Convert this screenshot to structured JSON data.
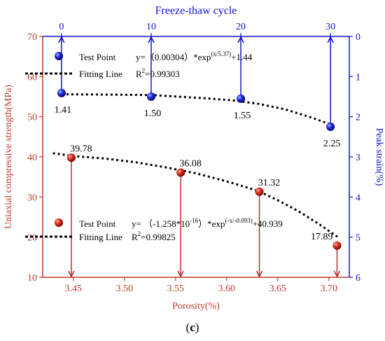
{
  "colors": {
    "bottom_axis": "#c0392b",
    "bottom_series": "#b22222",
    "top_axis": "#1010d0",
    "top_series": "#0000cc",
    "fit_line": "#000000",
    "text": "#000000"
  },
  "chart_data": [
    {
      "type": "scatter",
      "title": "",
      "xlabel": "Porosity(%)",
      "ylabel": "Uniaxial compressive strength(MPa)",
      "xlim": [
        3.42,
        3.72
      ],
      "ylim": [
        10,
        70
      ],
      "xticks": [
        "3.45",
        "3.50",
        "3.55",
        "3.60",
        "3.65",
        "3.70"
      ],
      "yticks": [
        "10",
        "20",
        "30",
        "40",
        "50",
        "60",
        "70"
      ],
      "series": [
        {
          "name": "Test Point",
          "x": [
            3.448,
            3.555,
            3.632,
            3.708
          ],
          "y": [
            39.78,
            36.08,
            31.32,
            17.89
          ],
          "labels": [
            "39.78",
            "36.08",
            "31.32",
            "17.89"
          ]
        },
        {
          "name": "Fitting Line",
          "style": "dotted",
          "x": [
            3.43,
            3.45,
            3.48,
            3.51,
            3.54,
            3.57,
            3.6,
            3.63,
            3.65,
            3.67,
            3.69,
            3.71
          ],
          "y": [
            40.9,
            40.2,
            39.6,
            38.7,
            37.4,
            35.9,
            33.9,
            31.6,
            29.2,
            26.5,
            23.3,
            19.8
          ]
        }
      ],
      "legend": {
        "placement": "lower-left",
        "test_point": "Test Point",
        "fitting_line": "Fitting Line",
        "equation_prefix": "y= （-1.258*10",
        "equation_exp1": "-16",
        "equation_mid": "）*exp",
        "equation_exp2": "(-x/-0.093)",
        "equation_suffix": "+40.939",
        "r2_prefix": "R",
        "r2_sup": "2",
        "r2_value": "=0.99825"
      }
    },
    {
      "type": "scatter",
      "title": "",
      "xlabel": "Freeze-thaw cycle",
      "ylabel": "Peak strain(%)",
      "xlim": [
        -2.1,
        32.1
      ],
      "ylim": [
        6,
        0
      ],
      "xticks": [
        "0",
        "10",
        "20",
        "30"
      ],
      "yticks": [
        "0",
        "1",
        "2",
        "3",
        "4",
        "5",
        "6"
      ],
      "series": [
        {
          "name": "Test Point",
          "x": [
            0,
            10,
            20,
            30
          ],
          "y": [
            1.41,
            1.5,
            1.55,
            2.25
          ],
          "labels": [
            "1.41",
            "1.50",
            "1.55",
            "2.25"
          ]
        },
        {
          "name": "Fitting Line",
          "style": "dotted",
          "x": [
            0,
            5,
            10,
            13,
            16,
            19,
            22,
            25,
            28,
            30
          ],
          "y": [
            1.44,
            1.45,
            1.46,
            1.5,
            1.54,
            1.59,
            1.68,
            1.82,
            2.03,
            2.19
          ]
        }
      ],
      "legend": {
        "placement": "upper-left",
        "test_point": "Test Point",
        "fitting_line": "Fitting Line",
        "equation_prefix": "y=（0.00304）*exp",
        "equation_exp": "(x/5.37)",
        "equation_suffix": "+1.44",
        "r2_prefix": "R",
        "r2_sup": "2",
        "r2_value": "=0.99303"
      }
    }
  ],
  "caption": {
    "open": "(",
    "letter": "c",
    "close": ")"
  }
}
